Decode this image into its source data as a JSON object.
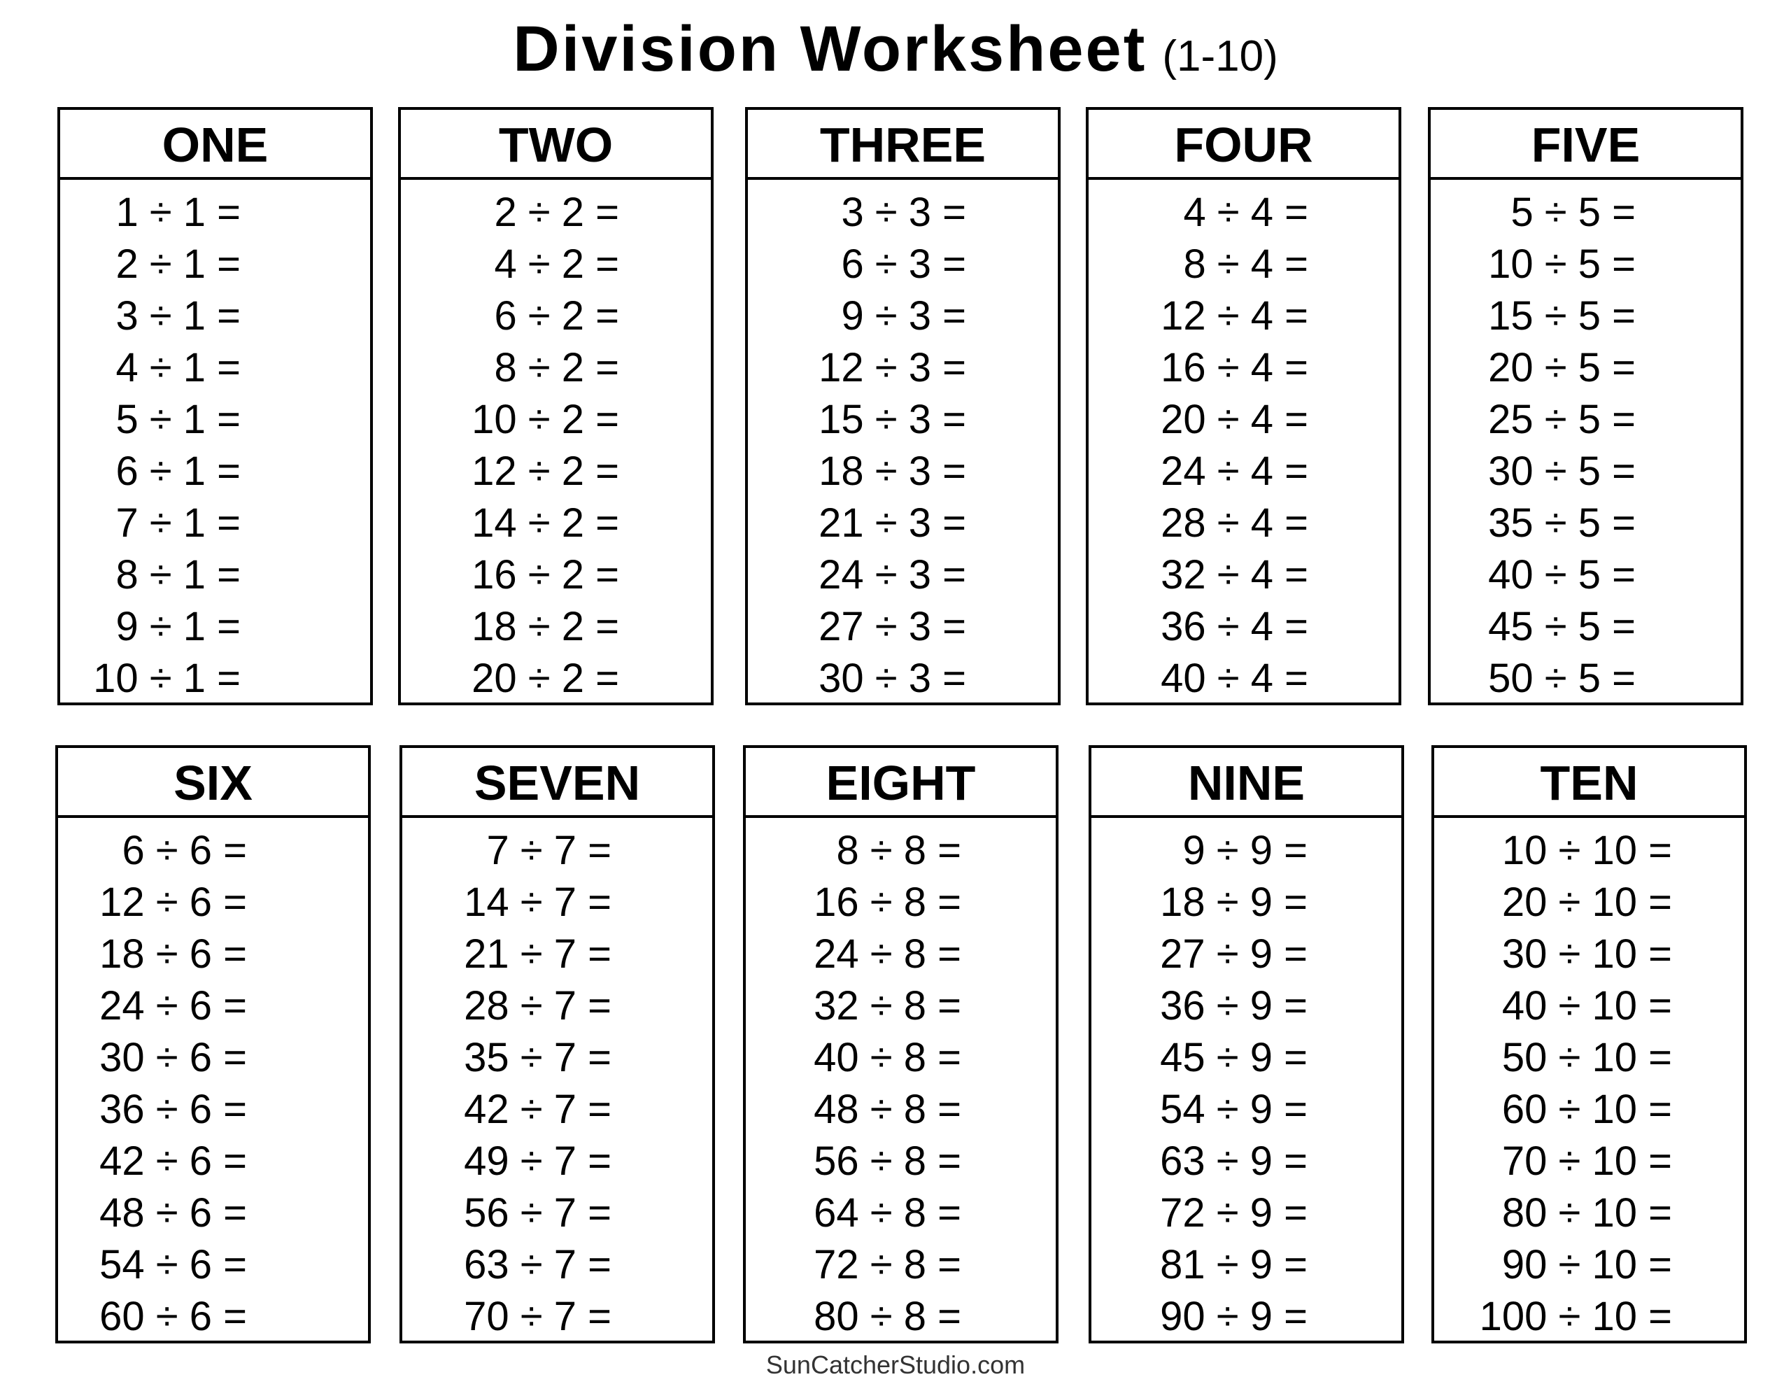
{
  "title": {
    "main": "Division Worksheet",
    "range": "(1-10)"
  },
  "footer": "SunCatcherStudio.com",
  "sections": [
    {
      "heading": "ONE",
      "problems": [
        "1 ÷ 1 =",
        "2 ÷ 1 =",
        "3 ÷ 1 =",
        "4 ÷ 1 =",
        "5 ÷ 1 =",
        "6 ÷ 1 =",
        "7 ÷ 1 =",
        "8 ÷ 1 =",
        "9 ÷ 1 =",
        "10 ÷ 1 ="
      ]
    },
    {
      "heading": "TWO",
      "problems": [
        "2 ÷ 2 =",
        "4 ÷ 2 =",
        "6 ÷ 2 =",
        "8 ÷ 2 =",
        "10 ÷ 2 =",
        "12 ÷ 2 =",
        "14 ÷ 2 =",
        "16 ÷ 2 =",
        "18 ÷ 2 =",
        "20 ÷ 2 ="
      ]
    },
    {
      "heading": "THREE",
      "problems": [
        "3 ÷ 3 =",
        "6 ÷ 3 =",
        "9 ÷ 3 =",
        "12 ÷ 3 =",
        "15 ÷ 3 =",
        "18 ÷ 3 =",
        "21 ÷ 3 =",
        "24 ÷ 3 =",
        "27 ÷ 3 =",
        "30 ÷ 3 ="
      ]
    },
    {
      "heading": "FOUR",
      "problems": [
        "4 ÷ 4 =",
        "8 ÷ 4 =",
        "12 ÷ 4 =",
        "16 ÷ 4 =",
        "20 ÷ 4 =",
        "24 ÷ 4 =",
        "28 ÷ 4 =",
        "32 ÷ 4 =",
        "36 ÷ 4 =",
        "40 ÷ 4 ="
      ]
    },
    {
      "heading": "FIVE",
      "problems": [
        "5 ÷ 5 =",
        "10 ÷ 5 =",
        "15 ÷ 5 =",
        "20 ÷ 5 =",
        "25 ÷ 5 =",
        "30 ÷ 5 =",
        "35 ÷ 5 =",
        "40 ÷ 5 =",
        "45 ÷ 5 =",
        "50 ÷ 5 ="
      ]
    },
    {
      "heading": "SIX",
      "problems": [
        "6 ÷ 6 =",
        "12 ÷ 6 =",
        "18 ÷ 6 =",
        "24 ÷ 6 =",
        "30 ÷ 6 =",
        "36 ÷ 6 =",
        "42 ÷ 6 =",
        "48 ÷ 6 =",
        "54 ÷ 6 =",
        "60 ÷ 6 ="
      ]
    },
    {
      "heading": "SEVEN",
      "problems": [
        "7 ÷ 7 =",
        "14 ÷ 7 =",
        "21 ÷ 7 =",
        "28 ÷ 7 =",
        "35 ÷ 7 =",
        "42 ÷ 7 =",
        "49 ÷ 7 =",
        "56 ÷ 7 =",
        "63 ÷ 7 =",
        "70 ÷ 7 ="
      ]
    },
    {
      "heading": "EIGHT",
      "problems": [
        "8 ÷ 8 =",
        "16 ÷ 8 =",
        "24 ÷ 8 =",
        "32 ÷ 8 =",
        "40 ÷ 8 =",
        "48 ÷ 8 =",
        "56 ÷ 8 =",
        "64 ÷ 8 =",
        "72 ÷ 8 =",
        "80 ÷ 8 ="
      ]
    },
    {
      "heading": "NINE",
      "problems": [
        "9 ÷ 9 =",
        "18 ÷ 9 =",
        "27 ÷ 9 =",
        "36 ÷ 9 =",
        "45 ÷ 9 =",
        "54 ÷ 9 =",
        "63 ÷ 9 =",
        "72 ÷ 9 =",
        "81 ÷ 9 =",
        "90 ÷ 9 ="
      ]
    },
    {
      "heading": "TEN",
      "problems": [
        "10 ÷ 10 =",
        "20 ÷ 10 =",
        "30 ÷ 10 =",
        "40 ÷ 10 =",
        "50 ÷ 10 =",
        "60 ÷ 10 =",
        "70 ÷ 10 =",
        "80 ÷ 10 =",
        "90 ÷ 10 =",
        "100 ÷ 10 ="
      ]
    }
  ]
}
